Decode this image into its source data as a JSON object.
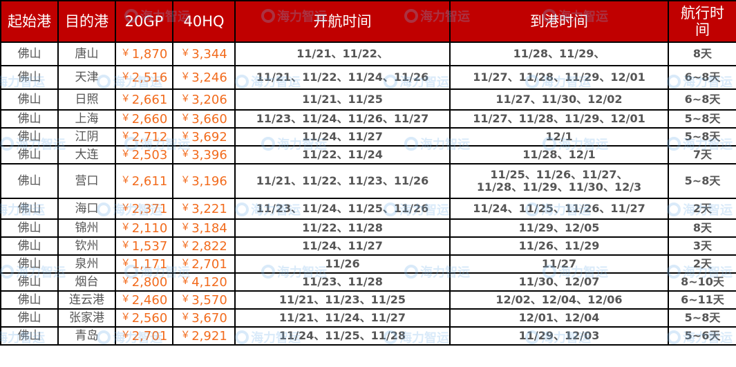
{
  "headers": [
    "起始港",
    "目的港",
    "20GP",
    "40HQ",
    "开航时间",
    "到港时间",
    "航行时间"
  ],
  "currency_symbol": "￥",
  "watermark": "海力智运",
  "colors": {
    "header_bg": "#c00000",
    "header_text": "#ffffff",
    "price": "#f26b1d",
    "text": "#555555"
  },
  "rows": [
    {
      "origin": "佛山",
      "dest": "唐山",
      "gp20": "1,870",
      "hq40": "3,344",
      "depart": "11/21、11/22、",
      "arrive": "11/28、11/29、",
      "transit": "8天"
    },
    {
      "origin": "佛山",
      "dest": "天津",
      "gp20": "2,516",
      "hq40": "3,246",
      "depart": "11/21、11/22、11/24、11/26",
      "arrive": "11/27、11/28、11/29、12/01",
      "transit": "6~8天"
    },
    {
      "origin": "佛山",
      "dest": "日照",
      "gp20": "2,661",
      "hq40": "3,206",
      "depart": "11/21、11/25",
      "arrive": "11/27、11/30、12/02",
      "transit": "6~8天"
    },
    {
      "origin": "佛山",
      "dest": "上海",
      "gp20": "2,660",
      "hq40": "3,660",
      "depart": "11/23、11/24、11/26、11/27",
      "arrive": "11/27、11/28、11/29、12/01",
      "transit": "5~8天"
    },
    {
      "origin": "佛山",
      "dest": "江阴",
      "gp20": "2,712",
      "hq40": "3,692",
      "depart": "11/24、11/27",
      "arrive": "12/1",
      "transit": "5~8天"
    },
    {
      "origin": "佛山",
      "dest": "大连",
      "gp20": "2,503",
      "hq40": "3,396",
      "depart": "11/22、11/24",
      "arrive": "11/28、12/1",
      "transit": "7天"
    },
    {
      "origin": "佛山",
      "dest": "营口",
      "gp20": "2,611",
      "hq40": "3,196",
      "depart": "11/21、11/22、11/23、11/26",
      "arrive": "11/25、11/26、11/27、11/28、11/29、11/30、12/3",
      "transit": "5~8天"
    },
    {
      "origin": "佛山",
      "dest": "海口",
      "gp20": "2,371",
      "hq40": "3,221",
      "depart": "11/23、11/24、11/25、11/26",
      "arrive": "11/24、11/25、11/26、11/27",
      "transit": "2天"
    },
    {
      "origin": "佛山",
      "dest": "锦州",
      "gp20": "2,110",
      "hq40": "3,184",
      "depart": "11/22、11/28",
      "arrive": "11/29、12/05",
      "transit": "8天"
    },
    {
      "origin": "佛山",
      "dest": "钦州",
      "gp20": "1,537",
      "hq40": "2,822",
      "depart": "11/24、11/27",
      "arrive": "11/26、11/29",
      "transit": "3天"
    },
    {
      "origin": "佛山",
      "dest": "泉州",
      "gp20": "1,171",
      "hq40": "2,701",
      "depart": "11/26",
      "arrive": "11/27",
      "transit": "2天"
    },
    {
      "origin": "佛山",
      "dest": "烟台",
      "gp20": "2,800",
      "hq40": "4,120",
      "depart": "11/23、11/28",
      "arrive": "11/30、12/07",
      "transit": "8~10天"
    },
    {
      "origin": "佛山",
      "dest": "连云港",
      "gp20": "2,460",
      "hq40": "3,570",
      "depart": "11/21、11/23、11/25",
      "arrive": "12/02、12/04、12/06",
      "transit": "6~11天"
    },
    {
      "origin": "佛山",
      "dest": "张家港",
      "gp20": "2,560",
      "hq40": "3,670",
      "depart": "11/21、11/24、11/27",
      "arrive": "12/01、12/04",
      "transit": "5~8天"
    },
    {
      "origin": "佛山",
      "dest": "青岛",
      "gp20": "2,701",
      "hq40": "2,921",
      "depart": "11/24、11/25、11/28",
      "arrive": "11/29、12/03",
      "transit": "5~6天"
    }
  ]
}
